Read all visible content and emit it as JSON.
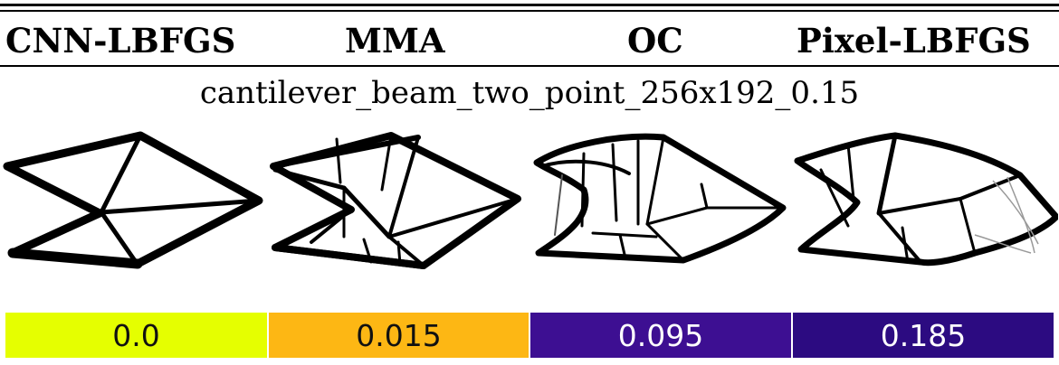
{
  "header": {
    "methods": [
      "CNN-LBFGS",
      "MMA",
      "OC",
      "Pixel-LBFGS"
    ]
  },
  "case_title": "cantilever_beam_two_point_256x192_0.15",
  "scores": [
    {
      "label": "0.0",
      "bg": "#e5ff00",
      "fg": "#111111"
    },
    {
      "label": "0.015",
      "bg": "#fdb714",
      "fg": "#111111"
    },
    {
      "label": "0.095",
      "bg": "#3d0f92",
      "fg": "#ffffff"
    },
    {
      "label": "0.185",
      "bg": "#2c0b81",
      "fg": "#ffffff"
    }
  ]
}
